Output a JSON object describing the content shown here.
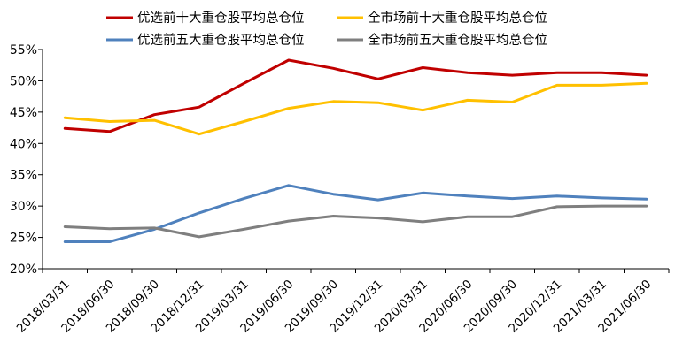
{
  "chart_data": {
    "type": "line",
    "title": "",
    "xlabel": "",
    "ylabel": "",
    "categories": [
      "2018/03/31",
      "2018/06/30",
      "2018/09/30",
      "2018/12/31",
      "2019/03/31",
      "2019/06/30",
      "2019/09/30",
      "2019/12/31",
      "2020/03/31",
      "2020/06/30",
      "2020/09/30",
      "2020/12/31",
      "2021/03/31",
      "2021/06/30"
    ],
    "ylim": [
      20,
      55
    ],
    "yticks": [
      20,
      25,
      30,
      35,
      40,
      45,
      50,
      55
    ],
    "ytick_labels": [
      "20%",
      "25%",
      "30%",
      "35%",
      "40%",
      "45%",
      "50%",
      "55%"
    ],
    "grid": false,
    "legend_position": "top",
    "series": [
      {
        "name": "优选前十大重仓股平均总仓位",
        "color": "#C00000",
        "values": [
          42.4,
          41.9,
          44.6,
          45.8,
          49.6,
          53.3,
          52.0,
          50.3,
          52.1,
          51.3,
          50.9,
          51.3,
          51.3,
          50.9
        ]
      },
      {
        "name": "全市场前十大重仓股平均总仓位",
        "color": "#FFC000",
        "values": [
          44.1,
          43.5,
          43.7,
          41.5,
          43.5,
          45.6,
          46.7,
          46.5,
          45.3,
          46.9,
          46.6,
          49.3,
          49.3,
          49.6
        ]
      },
      {
        "name": "优选前五大重仓股平均总仓位",
        "color": "#4F81BD",
        "values": [
          24.3,
          24.3,
          26.3,
          28.9,
          31.2,
          33.3,
          31.9,
          31.0,
          32.1,
          31.6,
          31.2,
          31.6,
          31.3,
          31.1
        ]
      },
      {
        "name": "全市场前五大重仓股平均总仓位",
        "color": "#7F7F7F",
        "values": [
          26.7,
          26.4,
          26.5,
          25.1,
          26.3,
          27.6,
          28.4,
          28.1,
          27.5,
          28.3,
          28.3,
          29.9,
          30.0,
          30.0
        ]
      }
    ]
  }
}
